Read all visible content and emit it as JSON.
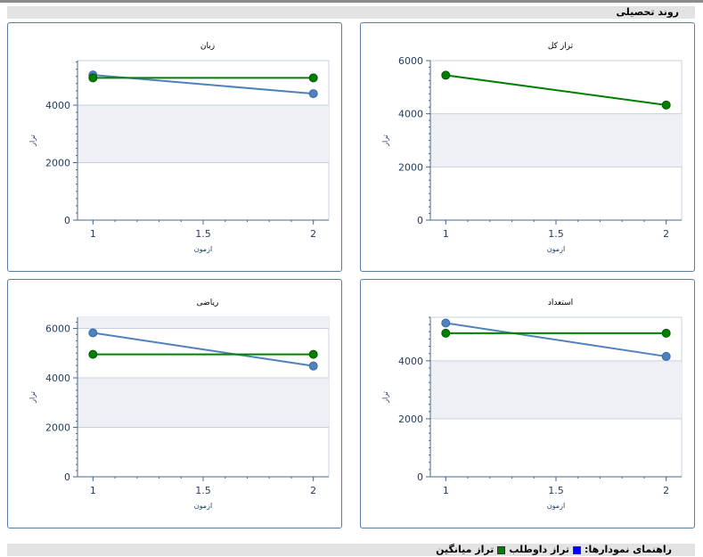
{
  "header": {
    "title": "روند تحصیلی"
  },
  "legend": {
    "label": "راهنمای نمودارها:",
    "items": [
      {
        "name": "تراز داوطلب",
        "color": "#0000ff"
      },
      {
        "name": "تراز میانگین",
        "color": "#008000"
      }
    ]
  },
  "chart_data": [
    {
      "type": "line",
      "title": "زبان",
      "xlabel": "ازمون",
      "ylabel": "تراز",
      "x": [
        1,
        2
      ],
      "xticks": [
        "1",
        "1.5",
        "2"
      ],
      "yticks": [
        "0",
        "2000",
        "4000"
      ],
      "xlim": [
        0.93,
        2.07
      ],
      "ylim": [
        0,
        5550
      ],
      "bands": [
        [
          2000,
          4000
        ]
      ],
      "series": [
        {
          "values": [
            5050,
            4400
          ],
          "color": "#4f81bd"
        },
        {
          "values": [
            4950,
            4950
          ],
          "color": "#008000"
        }
      ]
    },
    {
      "type": "line",
      "title": "تراز کل",
      "xlabel": "ازمون",
      "ylabel": "تراز",
      "x": [
        1,
        2
      ],
      "xticks": [
        "1",
        "1.5",
        "2"
      ],
      "yticks": [
        "0",
        "2000",
        "4000",
        "6000"
      ],
      "xlim": [
        0.93,
        2.07
      ],
      "ylim": [
        0,
        6000
      ],
      "bands": [
        [
          2000,
          4000
        ]
      ],
      "series": [
        {
          "values": [
            5450,
            4330
          ],
          "color": "#008000"
        }
      ]
    },
    {
      "type": "line",
      "title": "ریاضی",
      "xlabel": "ازمون",
      "ylabel": "تراز",
      "x": [
        1,
        2
      ],
      "xticks": [
        "1",
        "1.5",
        "2"
      ],
      "yticks": [
        "0",
        "2000",
        "4000",
        "6000"
      ],
      "xlim": [
        0.93,
        2.07
      ],
      "ylim": [
        0,
        6450
      ],
      "bands": [
        [
          2000,
          4000
        ],
        [
          6000,
          6450
        ]
      ],
      "series": [
        {
          "values": [
            5820,
            4480
          ],
          "color": "#4f81bd"
        },
        {
          "values": [
            4950,
            4950
          ],
          "color": "#008000"
        }
      ]
    },
    {
      "type": "line",
      "title": "استعداد",
      "xlabel": "ازمون",
      "ylabel": "تراز",
      "x": [
        1,
        2
      ],
      "xticks": [
        "1",
        "1.5",
        "2"
      ],
      "yticks": [
        "0",
        "2000",
        "4000"
      ],
      "xlim": [
        0.93,
        2.07
      ],
      "ylim": [
        0,
        5500
      ],
      "bands": [
        [
          2000,
          4000
        ]
      ],
      "series": [
        {
          "values": [
            5300,
            4150
          ],
          "color": "#4f81bd"
        },
        {
          "values": [
            4950,
            4950
          ],
          "color": "#008000"
        }
      ]
    }
  ]
}
